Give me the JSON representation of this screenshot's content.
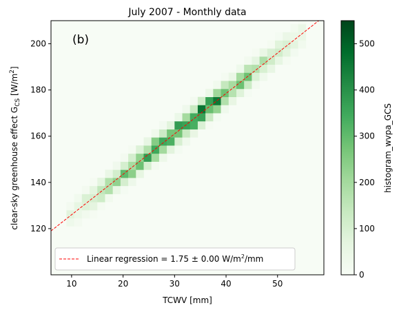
{
  "chart_data": {
    "type": "heatmap",
    "title": "July 2007 - Monthly data",
    "panel_label": "(b)",
    "xlabel": "TCWV [mm]",
    "ylabel_main": "clear-sky greenhouse effect G",
    "ylabel_sub": "CS",
    "ylabel_unit_open": " [W/m",
    "ylabel_unit_sup": "2",
    "ylabel_unit_close": "]",
    "xlim": [
      6,
      59
    ],
    "ylim": [
      100,
      210
    ],
    "xticks": [
      10,
      20,
      30,
      40,
      50
    ],
    "yticks": [
      120,
      140,
      160,
      180,
      200
    ],
    "colorbar": {
      "label": "histogram_wvpa_GCS",
      "range": [
        0,
        550
      ],
      "ticks": [
        0,
        100,
        200,
        300,
        400,
        500
      ],
      "colormap": [
        "#f7fcf5",
        "#e5f5e0",
        "#c7e9c0",
        "#a1d99b",
        "#74c476",
        "#41ab5d",
        "#238b45",
        "#006d2c",
        "#00441b"
      ]
    },
    "cell_size": {
      "dx": 1.5,
      "dy": 3.5
    },
    "regression": {
      "slope": 1.75,
      "intercept": 108.5,
      "color": "#ff0000",
      "legend_prefix": "Linear regression = 1.75 ± 0.00 W/m",
      "legend_sup": "2",
      "legend_suffix": "/mm"
    },
    "density_band": {
      "width_tcwv": 2.4,
      "peak_tcwv": 32,
      "x_range": [
        9,
        55
      ],
      "count_scale": 480
    }
  }
}
